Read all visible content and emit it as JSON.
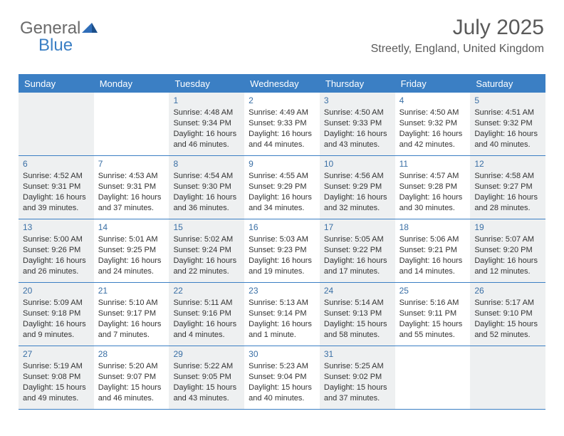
{
  "logo": {
    "general": "General",
    "blue": "Blue"
  },
  "header": {
    "month_title": "July 2025",
    "location": "Streetly, England, United Kingdom"
  },
  "colors": {
    "accent": "#3b7fc4",
    "header_text": "#ffffff",
    "body_text": "#333333",
    "shaded_bg": "#eef0f1",
    "title_text": "#5a5a5a"
  },
  "day_names": [
    "Sunday",
    "Monday",
    "Tuesday",
    "Wednesday",
    "Thursday",
    "Friday",
    "Saturday"
  ],
  "weeks": [
    [
      {
        "shaded": true
      },
      {
        "shaded": false
      },
      {
        "day": "1",
        "shaded": true,
        "sunrise": "Sunrise: 4:48 AM",
        "sunset": "Sunset: 9:34 PM",
        "daylight": "Daylight: 16 hours and 46 minutes."
      },
      {
        "day": "2",
        "shaded": false,
        "sunrise": "Sunrise: 4:49 AM",
        "sunset": "Sunset: 9:33 PM",
        "daylight": "Daylight: 16 hours and 44 minutes."
      },
      {
        "day": "3",
        "shaded": true,
        "sunrise": "Sunrise: 4:50 AM",
        "sunset": "Sunset: 9:33 PM",
        "daylight": "Daylight: 16 hours and 43 minutes."
      },
      {
        "day": "4",
        "shaded": false,
        "sunrise": "Sunrise: 4:50 AM",
        "sunset": "Sunset: 9:32 PM",
        "daylight": "Daylight: 16 hours and 42 minutes."
      },
      {
        "day": "5",
        "shaded": true,
        "sunrise": "Sunrise: 4:51 AM",
        "sunset": "Sunset: 9:32 PM",
        "daylight": "Daylight: 16 hours and 40 minutes."
      }
    ],
    [
      {
        "day": "6",
        "shaded": true,
        "sunrise": "Sunrise: 4:52 AM",
        "sunset": "Sunset: 9:31 PM",
        "daylight": "Daylight: 16 hours and 39 minutes."
      },
      {
        "day": "7",
        "shaded": false,
        "sunrise": "Sunrise: 4:53 AM",
        "sunset": "Sunset: 9:31 PM",
        "daylight": "Daylight: 16 hours and 37 minutes."
      },
      {
        "day": "8",
        "shaded": true,
        "sunrise": "Sunrise: 4:54 AM",
        "sunset": "Sunset: 9:30 PM",
        "daylight": "Daylight: 16 hours and 36 minutes."
      },
      {
        "day": "9",
        "shaded": false,
        "sunrise": "Sunrise: 4:55 AM",
        "sunset": "Sunset: 9:29 PM",
        "daylight": "Daylight: 16 hours and 34 minutes."
      },
      {
        "day": "10",
        "shaded": true,
        "sunrise": "Sunrise: 4:56 AM",
        "sunset": "Sunset: 9:29 PM",
        "daylight": "Daylight: 16 hours and 32 minutes."
      },
      {
        "day": "11",
        "shaded": false,
        "sunrise": "Sunrise: 4:57 AM",
        "sunset": "Sunset: 9:28 PM",
        "daylight": "Daylight: 16 hours and 30 minutes."
      },
      {
        "day": "12",
        "shaded": true,
        "sunrise": "Sunrise: 4:58 AM",
        "sunset": "Sunset: 9:27 PM",
        "daylight": "Daylight: 16 hours and 28 minutes."
      }
    ],
    [
      {
        "day": "13",
        "shaded": true,
        "sunrise": "Sunrise: 5:00 AM",
        "sunset": "Sunset: 9:26 PM",
        "daylight": "Daylight: 16 hours and 26 minutes."
      },
      {
        "day": "14",
        "shaded": false,
        "sunrise": "Sunrise: 5:01 AM",
        "sunset": "Sunset: 9:25 PM",
        "daylight": "Daylight: 16 hours and 24 minutes."
      },
      {
        "day": "15",
        "shaded": true,
        "sunrise": "Sunrise: 5:02 AM",
        "sunset": "Sunset: 9:24 PM",
        "daylight": "Daylight: 16 hours and 22 minutes."
      },
      {
        "day": "16",
        "shaded": false,
        "sunrise": "Sunrise: 5:03 AM",
        "sunset": "Sunset: 9:23 PM",
        "daylight": "Daylight: 16 hours and 19 minutes."
      },
      {
        "day": "17",
        "shaded": true,
        "sunrise": "Sunrise: 5:05 AM",
        "sunset": "Sunset: 9:22 PM",
        "daylight": "Daylight: 16 hours and 17 minutes."
      },
      {
        "day": "18",
        "shaded": false,
        "sunrise": "Sunrise: 5:06 AM",
        "sunset": "Sunset: 9:21 PM",
        "daylight": "Daylight: 16 hours and 14 minutes."
      },
      {
        "day": "19",
        "shaded": true,
        "sunrise": "Sunrise: 5:07 AM",
        "sunset": "Sunset: 9:20 PM",
        "daylight": "Daylight: 16 hours and 12 minutes."
      }
    ],
    [
      {
        "day": "20",
        "shaded": true,
        "sunrise": "Sunrise: 5:09 AM",
        "sunset": "Sunset: 9:18 PM",
        "daylight": "Daylight: 16 hours and 9 minutes."
      },
      {
        "day": "21",
        "shaded": false,
        "sunrise": "Sunrise: 5:10 AM",
        "sunset": "Sunset: 9:17 PM",
        "daylight": "Daylight: 16 hours and 7 minutes."
      },
      {
        "day": "22",
        "shaded": true,
        "sunrise": "Sunrise: 5:11 AM",
        "sunset": "Sunset: 9:16 PM",
        "daylight": "Daylight: 16 hours and 4 minutes."
      },
      {
        "day": "23",
        "shaded": false,
        "sunrise": "Sunrise: 5:13 AM",
        "sunset": "Sunset: 9:14 PM",
        "daylight": "Daylight: 16 hours and 1 minute."
      },
      {
        "day": "24",
        "shaded": true,
        "sunrise": "Sunrise: 5:14 AM",
        "sunset": "Sunset: 9:13 PM",
        "daylight": "Daylight: 15 hours and 58 minutes."
      },
      {
        "day": "25",
        "shaded": false,
        "sunrise": "Sunrise: 5:16 AM",
        "sunset": "Sunset: 9:11 PM",
        "daylight": "Daylight: 15 hours and 55 minutes."
      },
      {
        "day": "26",
        "shaded": true,
        "sunrise": "Sunrise: 5:17 AM",
        "sunset": "Sunset: 9:10 PM",
        "daylight": "Daylight: 15 hours and 52 minutes."
      }
    ],
    [
      {
        "day": "27",
        "shaded": true,
        "sunrise": "Sunrise: 5:19 AM",
        "sunset": "Sunset: 9:08 PM",
        "daylight": "Daylight: 15 hours and 49 minutes."
      },
      {
        "day": "28",
        "shaded": false,
        "sunrise": "Sunrise: 5:20 AM",
        "sunset": "Sunset: 9:07 PM",
        "daylight": "Daylight: 15 hours and 46 minutes."
      },
      {
        "day": "29",
        "shaded": true,
        "sunrise": "Sunrise: 5:22 AM",
        "sunset": "Sunset: 9:05 PM",
        "daylight": "Daylight: 15 hours and 43 minutes."
      },
      {
        "day": "30",
        "shaded": false,
        "sunrise": "Sunrise: 5:23 AM",
        "sunset": "Sunset: 9:04 PM",
        "daylight": "Daylight: 15 hours and 40 minutes."
      },
      {
        "day": "31",
        "shaded": true,
        "sunrise": "Sunrise: 5:25 AM",
        "sunset": "Sunset: 9:02 PM",
        "daylight": "Daylight: 15 hours and 37 minutes."
      },
      {
        "shaded": false
      },
      {
        "shaded": true
      }
    ]
  ]
}
